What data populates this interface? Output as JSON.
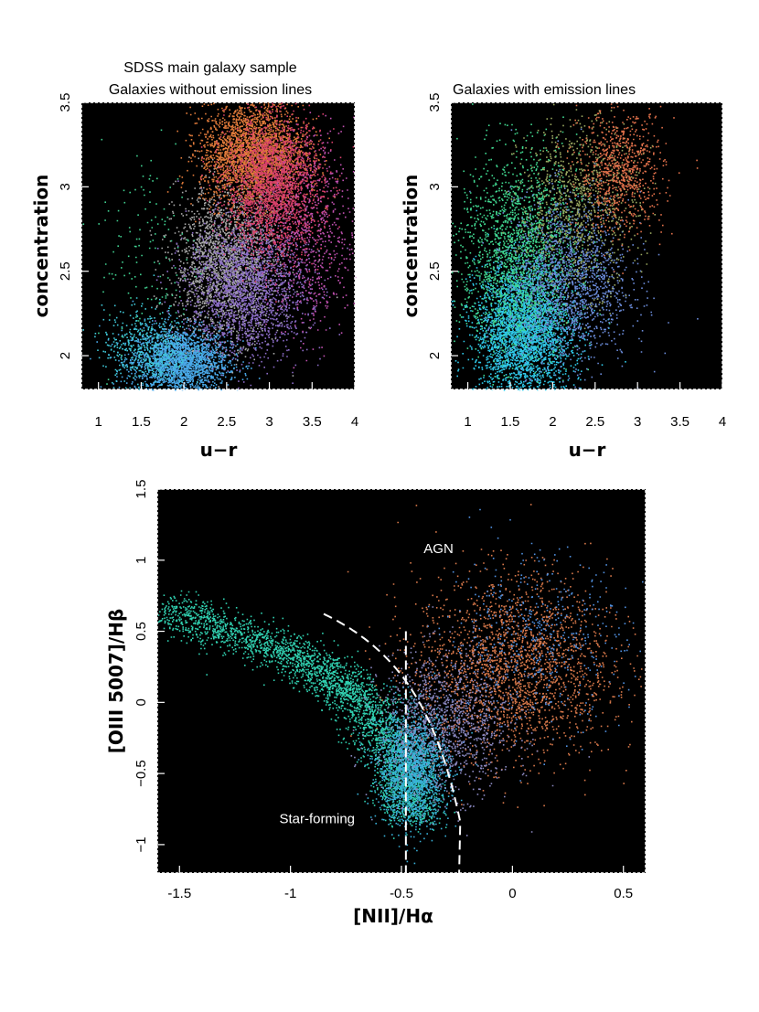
{
  "chart_data": [
    {
      "type": "scatter",
      "id": "top-left",
      "title": "SDSS main galaxy sample",
      "subtitle": "Galaxies without emission lines",
      "xlabel": "u−r",
      "ylabel": "concentration",
      "xlim": [
        0.8,
        4.0
      ],
      "ylim": [
        1.8,
        3.5
      ],
      "xticks": [
        1,
        1.5,
        2,
        2.5,
        3,
        3.5,
        4
      ],
      "xtick_labels": [
        "1",
        "1.5",
        "2",
        "2.5",
        "3",
        "3.5",
        "4"
      ],
      "yticks": [
        2,
        2.5,
        3,
        3.5
      ],
      "ytick_labels": [
        "2",
        "2.5",
        "3",
        "3.5"
      ],
      "background": "#000000",
      "clusters": [
        {
          "name": "blue-low-concentration",
          "x": 1.95,
          "y": 1.97,
          "sx": 0.28,
          "sy": 0.1,
          "n": 2200,
          "color": "#49a8e8"
        },
        {
          "name": "blue-cyan-wing",
          "x": 1.55,
          "y": 2.05,
          "sx": 0.25,
          "sy": 0.12,
          "n": 500,
          "color": "#3fc8d8"
        },
        {
          "name": "gray-transition",
          "x": 2.5,
          "y": 2.55,
          "sx": 0.3,
          "sy": 0.22,
          "n": 2200,
          "color": "#a8a8a8"
        },
        {
          "name": "purple-mid",
          "x": 2.75,
          "y": 2.4,
          "sx": 0.35,
          "sy": 0.2,
          "n": 1800,
          "color": "#8b6cc8"
        },
        {
          "name": "orange-high-concentration",
          "x": 2.8,
          "y": 3.2,
          "sx": 0.3,
          "sy": 0.15,
          "n": 2600,
          "color": "#e07a3a"
        },
        {
          "name": "red-high-concentration",
          "x": 3.05,
          "y": 3.0,
          "sx": 0.28,
          "sy": 0.2,
          "n": 2200,
          "color": "#d8406a"
        },
        {
          "name": "magenta-red-tail",
          "x": 3.5,
          "y": 2.7,
          "sx": 0.25,
          "sy": 0.3,
          "n": 600,
          "color": "#c050b0"
        },
        {
          "name": "green-outliers",
          "x": 1.6,
          "y": 2.6,
          "sx": 0.3,
          "sy": 0.35,
          "n": 150,
          "color": "#40d090"
        }
      ]
    },
    {
      "type": "scatter",
      "id": "top-right",
      "title": "Galaxies with emission lines",
      "xlabel": "u−r",
      "ylabel": "concentration",
      "xlim": [
        0.8,
        4.0
      ],
      "ylim": [
        1.8,
        3.5
      ],
      "xticks": [
        1,
        1.5,
        2,
        2.5,
        3,
        3.5,
        4
      ],
      "xtick_labels": [
        "1",
        "1.5",
        "2",
        "2.5",
        "3",
        "3.5",
        "4"
      ],
      "yticks": [
        2,
        2.5,
        3,
        3.5
      ],
      "ytick_labels": [
        "2",
        "2.5",
        "3",
        "3.5"
      ],
      "background": "#000000",
      "clusters": [
        {
          "name": "cyan-star-forming-core",
          "x": 1.65,
          "y": 2.15,
          "sx": 0.28,
          "sy": 0.2,
          "n": 3200,
          "color": "#2fc8e8"
        },
        {
          "name": "green-star-forming",
          "x": 1.6,
          "y": 2.6,
          "sx": 0.35,
          "sy": 0.3,
          "n": 2000,
          "color": "#40d890"
        },
        {
          "name": "blue-violet-mid",
          "x": 2.2,
          "y": 2.45,
          "sx": 0.35,
          "sy": 0.25,
          "n": 1600,
          "color": "#6a8ad8"
        },
        {
          "name": "olive-transition",
          "x": 2.3,
          "y": 2.9,
          "sx": 0.35,
          "sy": 0.25,
          "n": 900,
          "color": "#9aa860"
        },
        {
          "name": "orange-red-high",
          "x": 2.8,
          "y": 3.1,
          "sx": 0.25,
          "sy": 0.18,
          "n": 800,
          "color": "#e0704a"
        }
      ]
    },
    {
      "type": "scatter",
      "id": "bottom",
      "title": "",
      "xlabel": "[NII]/Hα",
      "ylabel": "[OIII 5007]/Hβ",
      "xlim": [
        -1.6,
        0.6
      ],
      "ylim": [
        -1.2,
        1.5
      ],
      "xticks": [
        -1.5,
        -1,
        -0.5,
        0,
        0.5
      ],
      "xtick_labels": [
        "-1.5",
        "-1",
        "-0.5",
        "0",
        "0.5"
      ],
      "yticks": [
        -1,
        -0.5,
        0,
        0.5,
        1,
        1.5
      ],
      "ytick_labels": [
        "−1",
        "−0.5",
        "0",
        "0.5",
        "1",
        "1.5"
      ],
      "background": "#000000",
      "annotations": [
        {
          "text": "AGN",
          "x": -0.4,
          "y": 1.05
        },
        {
          "text": "Star-forming",
          "x": -1.05,
          "y": -0.85
        }
      ],
      "divider_curve": {
        "type": "kauffmann",
        "formula": "0.61/(x-0.05)+1.3",
        "x_range": [
          -0.85,
          -0.235
        ],
        "style": "dashed"
      },
      "divider_vertical": {
        "x": -0.48,
        "y_range": [
          -1.2,
          0.5
        ],
        "style": "dashed"
      },
      "clusters": [
        {
          "name": "star-forming-sequence-green",
          "path": [
            [
              -1.55,
              0.65
            ],
            [
              -1.0,
              0.35
            ],
            [
              -0.7,
              0.05
            ],
            [
              -0.5,
              -0.4
            ],
            [
              -0.45,
              -0.8
            ]
          ],
          "spread": 0.07,
          "n": 3200,
          "color": "#30d0b0"
        },
        {
          "name": "star-forming-base-cyan",
          "x": -0.45,
          "y": -0.45,
          "sx": 0.08,
          "sy": 0.2,
          "n": 1800,
          "color": "#38b0d8"
        },
        {
          "name": "agn-branch-orange",
          "x": 0.0,
          "y": 0.25,
          "sx": 0.22,
          "sy": 0.32,
          "n": 2200,
          "color": "#d8784a"
        },
        {
          "name": "composite-purple",
          "x": -0.3,
          "y": -0.15,
          "sx": 0.15,
          "sy": 0.25,
          "n": 1200,
          "color": "#8a88c0"
        },
        {
          "name": "agn-scatter-blue",
          "x": 0.1,
          "y": 0.45,
          "sx": 0.2,
          "sy": 0.3,
          "n": 500,
          "color": "#5090e0"
        }
      ]
    }
  ]
}
